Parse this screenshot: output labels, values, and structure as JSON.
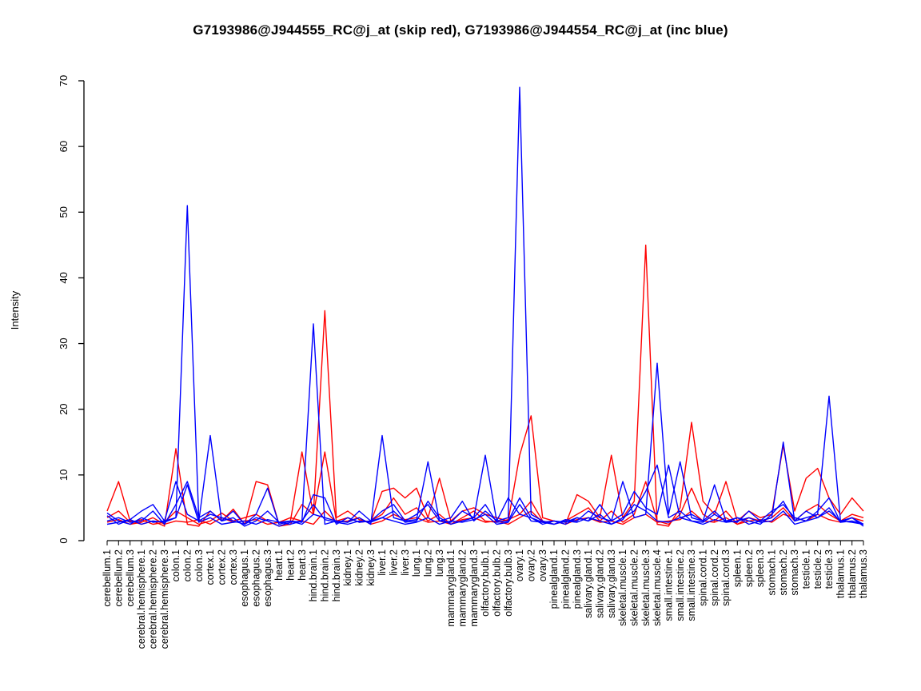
{
  "window": {
    "background": "#FFFFFF"
  },
  "chart_data": {
    "type": "line",
    "title": "G7193986@J944555_RC@j_at (skip red), G7193986@J944554_RC@j_at (inc blue)",
    "xlabel": "",
    "ylabel": "Intensity",
    "ylim": [
      0,
      70
    ],
    "y_ticks": [
      0,
      10,
      20,
      30,
      40,
      50,
      60,
      70
    ],
    "grid": false,
    "legend_position": "none",
    "color_coding": {
      "skip_probe": "#FF0000",
      "inc_probe": "#0000FF",
      "axis": "#000000"
    },
    "categories": [
      "cerebellum.1",
      "cerebellum.2",
      "cerebellum.3",
      "cerebral.hemisphere.1",
      "cerebral.hemisphere.2",
      "cerebral.hemisphere.3",
      "colon.1",
      "colon.2",
      "colon.3",
      "cortex.1",
      "cortex.2",
      "cortex.3",
      "esophagus.1",
      "esophagus.2",
      "esophagus.3",
      "heart.1",
      "heart.2",
      "heart.3",
      "hind.brain.1",
      "hind.brain.2",
      "hind.brain.3",
      "kidney.1",
      "kidney.2",
      "kidney.3",
      "liver.1",
      "liver.2",
      "liver.3",
      "lung.1",
      "lung.2",
      "lung.3",
      "mammarygland.1",
      "mammarygland.2",
      "mammarygland.3",
      "olfactory.bulb.1",
      "olfactory.bulb.2",
      "olfactory.bulb.3",
      "ovary.1",
      "ovary.2",
      "ovary.3",
      "pinealgland.1",
      "pinealgland.2",
      "pinealgland.3",
      "salivary.gland.1",
      "salivary.gland.2",
      "salivary.gland.3",
      "skeletal.muscle.1",
      "skeletal.muscle.2",
      "skeletal.muscle.3",
      "skeletal.muscle.4",
      "small.intestine.1",
      "small.intestine.2",
      "small.intestine.3",
      "spinal.cord.1",
      "spinal.cord.2",
      "spinal.cord.3",
      "spleen.1",
      "spleen.2",
      "spleen.3",
      "stomach.1",
      "stomach.2",
      "stomach.3",
      "testicle.1",
      "testicle.2",
      "testicle.3",
      "thalamus.1",
      "thalamus.2",
      "thalamus.3"
    ],
    "series": [
      {
        "name": "skip-red-1",
        "color": "#FF0000",
        "values": [
          4.5,
          9,
          3,
          2.5,
          3,
          2.2,
          14,
          2.5,
          2.2,
          4.5,
          3,
          4.8,
          2.5,
          9,
          8.5,
          2.5,
          3,
          13.5,
          4,
          35,
          3.5,
          4.5,
          3.2,
          2.8,
          7.5,
          8,
          6.5,
          8,
          3.5,
          9.5,
          3,
          4.5,
          5,
          4,
          3.5,
          3,
          13,
          19,
          3.5,
          3,
          2.5,
          7,
          6,
          3.5,
          13,
          3.5,
          6,
          45,
          2.5,
          2.2,
          5,
          18,
          6,
          4,
          9,
          3,
          4.5,
          3.5,
          4,
          14.5,
          4.5,
          9.5,
          11,
          6.5,
          4,
          6.5,
          4.5
        ]
      },
      {
        "name": "skip-red-2",
        "color": "#FF0000",
        "values": [
          3.5,
          4.5,
          2.8,
          3.2,
          2.5,
          2.8,
          4.5,
          3.5,
          2.5,
          3,
          4.2,
          3,
          3.5,
          4,
          3,
          2.2,
          2.5,
          5.5,
          4,
          13.5,
          3,
          3.5,
          2.8,
          3,
          4,
          6.5,
          4,
          5,
          3,
          4,
          2.5,
          3.5,
          4.5,
          3,
          2.8,
          3.2,
          4,
          6,
          3,
          2.5,
          3,
          4,
          5,
          3,
          4.5,
          2.8,
          4,
          9,
          3,
          2.5,
          4,
          8,
          4,
          3,
          4.5,
          2.5,
          3.5,
          3,
          3.5,
          5,
          3,
          4.5,
          5.5,
          4,
          3,
          4,
          3.5
        ]
      },
      {
        "name": "skip-red-3",
        "color": "#FF0000",
        "values": [
          2.8,
          3.2,
          2.5,
          2.8,
          3.5,
          2.5,
          3,
          2.8,
          3.2,
          2.5,
          3.5,
          2.8,
          3,
          3.2,
          2.5,
          2.8,
          3.5,
          3,
          2.5,
          4.5,
          2.8,
          3,
          3.5,
          2.5,
          3,
          4,
          3.2,
          3.5,
          2.8,
          3,
          2.5,
          3.2,
          3.5,
          2.8,
          3,
          2.5,
          3.5,
          4.5,
          2.8,
          3,
          2.5,
          3.2,
          3.5,
          2.8,
          3,
          2.5,
          3.5,
          4,
          2.8,
          3,
          3.2,
          4.5,
          3,
          2.8,
          3.5,
          2.5,
          3,
          3.2,
          2.8,
          4,
          3.5,
          3,
          4,
          3.2,
          2.8,
          3.5,
          3
        ]
      },
      {
        "name": "inc-blue-1",
        "color": "#0000FF",
        "values": [
          4.2,
          3,
          2.5,
          3.5,
          2.8,
          3,
          3.5,
          51,
          3,
          4,
          3.5,
          3,
          2.5,
          3.5,
          3,
          2.2,
          2.8,
          3,
          33,
          2.5,
          3,
          2.8,
          3.5,
          2.5,
          16,
          3.5,
          3,
          3.2,
          12,
          3,
          2.8,
          4.5,
          3.5,
          13,
          3,
          3.5,
          69,
          4,
          3,
          2.5,
          3.2,
          3,
          4.5,
          3.5,
          3,
          9,
          3.5,
          4,
          27,
          4,
          12,
          3.5,
          3,
          8.5,
          3,
          2.8,
          4.5,
          3,
          3.5,
          15,
          3,
          3.5,
          4,
          22,
          3,
          3.5,
          2.5
        ]
      },
      {
        "name": "inc-blue-2",
        "color": "#0000FF",
        "values": [
          3.8,
          2.5,
          3.2,
          4.5,
          5.5,
          3,
          9,
          4,
          3,
          16,
          3,
          4.5,
          2.5,
          4,
          8,
          2.5,
          3,
          2.8,
          7,
          6.5,
          2.5,
          3.5,
          2.8,
          3,
          4.5,
          5.5,
          3,
          4,
          5.5,
          3,
          3.5,
          6,
          3,
          4.5,
          3,
          6.5,
          4,
          3.5,
          2.8,
          3,
          2.5,
          3.5,
          3,
          5.5,
          3,
          4,
          7.5,
          5,
          4,
          11.5,
          3.5,
          4,
          3,
          4.5,
          2.8,
          3.5,
          3,
          2.5,
          4,
          6,
          3,
          4.5,
          3.5,
          5,
          2.8,
          3.5,
          2.2
        ]
      },
      {
        "name": "inc-blue-3",
        "color": "#0000FF",
        "values": [
          3,
          3.5,
          2.8,
          3,
          4.5,
          2.5,
          5.5,
          9,
          3.5,
          4.5,
          3,
          3.5,
          2.2,
          3,
          4.5,
          2.8,
          3,
          2.5,
          4,
          3.5,
          3,
          2.8,
          4.5,
          3,
          3.5,
          4.5,
          2.8,
          3,
          6,
          3.5,
          2.5,
          3,
          3.5,
          5.5,
          2.8,
          3,
          6.5,
          3.5,
          2.5,
          3,
          2.8,
          3.5,
          3,
          4,
          2.5,
          3.5,
          4.5,
          7.5,
          11.5,
          3.5,
          4.5,
          3,
          2.8,
          4,
          3,
          3.5,
          2.5,
          3,
          4.5,
          5.5,
          3.5,
          3,
          4.5,
          6.5,
          2.8,
          3,
          2.5
        ]
      },
      {
        "name": "inc-blue-4",
        "color": "#0000FF",
        "values": [
          2.5,
          2.8,
          3.2,
          2.5,
          3,
          2.8,
          3.5,
          8.5,
          2.8,
          3.5,
          2.5,
          2.8,
          3,
          2.5,
          3.2,
          2.8,
          2.5,
          3,
          5.5,
          3.2,
          2.8,
          2.5,
          3,
          2.8,
          3.5,
          3,
          2.5,
          2.8,
          3.5,
          2.5,
          3,
          2.8,
          3.2,
          4,
          2.5,
          2.8,
          5.5,
          3,
          2.8,
          2.5,
          3,
          2.8,
          3.5,
          3,
          2.5,
          3.2,
          5.5,
          4.5,
          3,
          2.8,
          3.5,
          3,
          2.5,
          3.2,
          2.8,
          3,
          3.5,
          2.8,
          3,
          4.5,
          2.5,
          3,
          3.5,
          4.5,
          3,
          2.8,
          2.5
        ]
      }
    ]
  }
}
